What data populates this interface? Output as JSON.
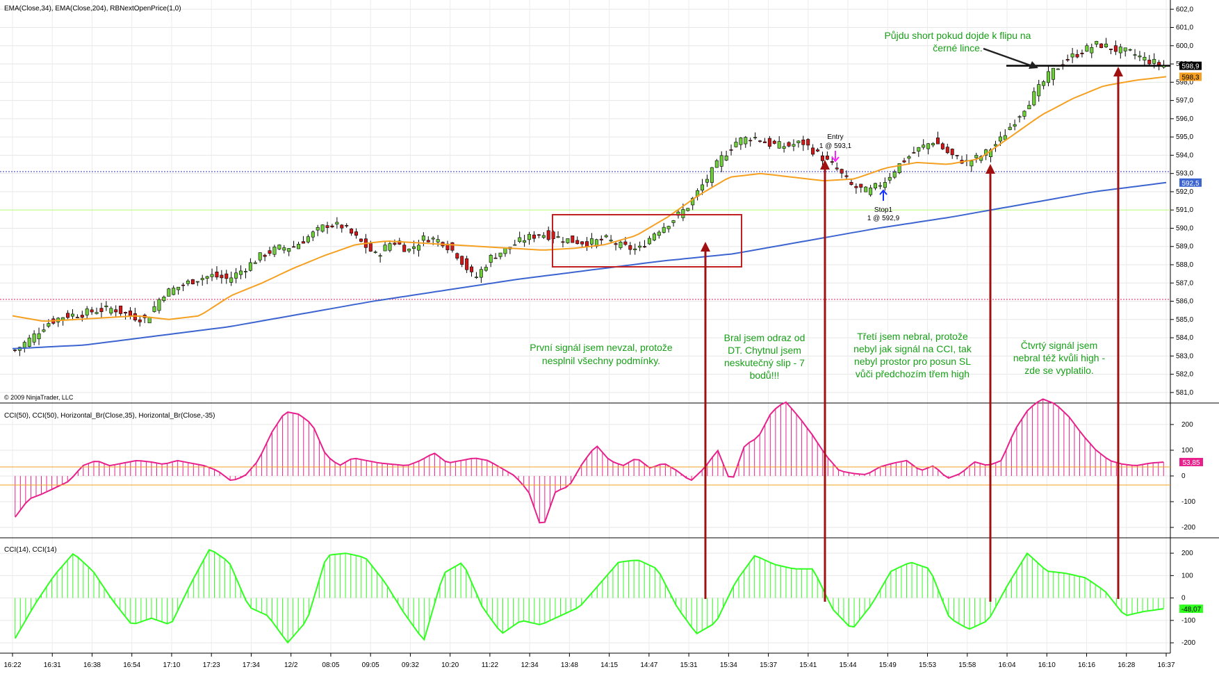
{
  "panels": {
    "price_title": "EMA(Close,34), EMA(Close,204), RBNextOpenPrice(1,0)",
    "cci50_title": "CCI(50), CCI(50), Horizontal_Br(Close,35), Horizontal_Br(Close,-35)",
    "cci14_title": "CCI(14), CCI(14)",
    "copyright": "© 2009 NinjaTrader, LLC"
  },
  "colors": {
    "up_candle": "#6fcf3a",
    "down_candle": "#d01818",
    "ema34": "#f5a020",
    "ema204": "#3c64d0",
    "cci50": "#e8208c",
    "cci14": "#30ff20",
    "annotation_text": "#18a018",
    "arrow": "#a01010",
    "box": "#c02020"
  },
  "chart_data": [
    {
      "type": "candlestick",
      "panel": "price",
      "ylim": [
        580.5,
        602.2
      ],
      "y_ticks": [
        "581,0",
        "582,0",
        "583,0",
        "584,0",
        "585,0",
        "586,0",
        "587,0",
        "588,0",
        "589,0",
        "590,0",
        "591,0",
        "592,0",
        "593,0",
        "594,0",
        "595,0",
        "596,0",
        "597,0",
        "598,0",
        "599,0",
        "600,0",
        "601,0",
        "602,0"
      ],
      "x_ticks": [
        "16:22",
        "16:31",
        "16:38",
        "16:54",
        "17:10",
        "17:23",
        "17:34",
        "12/2",
        "08:05",
        "09:05",
        "09:32",
        "10:20",
        "11:22",
        "12:34",
        "13:48",
        "14:15",
        "14:47",
        "15:31",
        "15:34",
        "15:37",
        "15:41",
        "15:44",
        "15:49",
        "15:53",
        "15:58",
        "16:04",
        "16:10",
        "16:16",
        "16:28",
        "16:37"
      ],
      "close_path": [
        583.3,
        584.0,
        584.8,
        585.2,
        585.3,
        585.5,
        585.6,
        585.2,
        585.0,
        586.4,
        586.8,
        587.2,
        587.4,
        587.2,
        587.8,
        588.5,
        588.9,
        589.0,
        589.6,
        590.2,
        590.1,
        589.3,
        588.5,
        589.3,
        588.8,
        589.5,
        589.3,
        588.5,
        587.2,
        588.4,
        588.9,
        589.4,
        589.7,
        589.5,
        589.3,
        589.2,
        589.4,
        589.0,
        588.8,
        589.8,
        590.4,
        591.2,
        592.5,
        593.8,
        594.8,
        595.0,
        594.6,
        594.5,
        594.7,
        594.0,
        593.3,
        592.3,
        592.0,
        592.6,
        593.6,
        594.3,
        594.8,
        594.0,
        593.6,
        594.0,
        594.8,
        596.0,
        597.2,
        598.4,
        599.2,
        599.7,
        600.1,
        599.8,
        599.6,
        599.2,
        598.9
      ],
      "ema34": [
        585.2,
        584.9,
        585.0,
        585.1,
        585.2,
        585.0,
        585.2,
        586.3,
        587.0,
        587.8,
        588.5,
        589.1,
        589.3,
        589.2,
        589.1,
        589.0,
        588.9,
        588.8,
        588.9,
        589.1,
        589.6,
        590.6,
        591.8,
        592.8,
        593.0,
        592.8,
        592.6,
        592.7,
        593.3,
        593.6,
        593.5,
        593.8,
        595.0,
        596.2,
        597.1,
        597.8,
        598.1,
        598.3
      ],
      "ema204": [
        583.4,
        583.6,
        584.1,
        584.6,
        585.3,
        586.0,
        586.6,
        587.2,
        587.7,
        588.2,
        588.6,
        589.3,
        590.0,
        590.6,
        591.3,
        592.0,
        592.5
      ],
      "series_notes": [
        "EMA(Close,34)",
        "EMA(Close,204)"
      ],
      "horizontal_lines": [
        {
          "y": 593.1,
          "style": "dotted",
          "color": "#3030c0"
        },
        {
          "y": 591.0,
          "style": "solid",
          "color": "#c0ff80"
        },
        {
          "y": 586.1,
          "style": "dotted",
          "color": "#e02060"
        },
        {
          "y": 598.9,
          "style": "solid",
          "color": "#000000",
          "partial": true
        }
      ],
      "price_labels": [
        {
          "text": "598,9",
          "y": 598.9,
          "bg": "#000000",
          "fg": "#ffffff"
        },
        {
          "text": "598,3",
          "y": 598.3,
          "bg": "#f5a020",
          "fg": "#000000"
        },
        {
          "text": "592,5",
          "y": 592.5,
          "bg": "#3c64d0",
          "fg": "#ffffff"
        }
      ],
      "trade_marks": {
        "entry_label": "Entry",
        "entry_detail": "1 @ 593,1",
        "stop_label": "Stop1",
        "stop_detail": "1 @ 592,9"
      }
    },
    {
      "type": "histogram_line",
      "panel": "cci50",
      "ylim": [
        -235,
        270
      ],
      "y_ticks": [
        "200",
        "100",
        "0",
        "-100",
        "-200"
      ],
      "reference_lines": [
        35,
        -35
      ],
      "last_value_label": "53,85",
      "values": [
        -160,
        -90,
        -70,
        -45,
        -20,
        40,
        60,
        40,
        50,
        60,
        55,
        45,
        60,
        50,
        40,
        20,
        -20,
        0,
        60,
        170,
        250,
        240,
        200,
        80,
        40,
        70,
        60,
        50,
        45,
        40,
        60,
        90,
        50,
        60,
        70,
        60,
        30,
        0,
        -60,
        -210,
        -60,
        -40,
        50,
        120,
        60,
        40,
        70,
        30,
        50,
        20,
        -20,
        30,
        100,
        -30,
        120,
        150,
        250,
        290,
        230,
        160,
        80,
        20,
        10,
        5,
        35,
        50,
        60,
        20,
        40,
        -10,
        10,
        55,
        40,
        60,
        180,
        260,
        300,
        280,
        230,
        160,
        100,
        60,
        45,
        40,
        50,
        54
      ]
    },
    {
      "type": "histogram_line",
      "panel": "cci14",
      "ylim": [
        -240,
        250
      ],
      "y_ticks": [
        "200",
        "100",
        "0",
        "-100",
        "-200"
      ],
      "last_value_label": "-48,07",
      "values": [
        -180,
        -30,
        100,
        200,
        120,
        -10,
        -120,
        -90,
        -120,
        60,
        220,
        160,
        -40,
        -80,
        -200,
        -100,
        190,
        200,
        180,
        70,
        -70,
        -190,
        110,
        160,
        -40,
        -160,
        -100,
        -120,
        -80,
        -40,
        60,
        160,
        170,
        130,
        -40,
        -160,
        -110,
        70,
        190,
        150,
        130,
        130,
        -50,
        -140,
        -30,
        120,
        160,
        130,
        -90,
        -140,
        -100,
        60,
        200,
        120,
        110,
        90,
        30,
        -80,
        -60,
        -48
      ]
    }
  ],
  "annotations": {
    "box_note": "",
    "note1_line1": "První signál jsem nevzal, protože",
    "note1_line2": "nesplnil všechny podmínky.",
    "note2_line1": "Bral jsem odraz od",
    "note2_line2": "DT. Chytnul jsem",
    "note2_line3": "neskutečný slip - 7",
    "note2_line4": "bodů!!!",
    "note3_line1": "Třetí jsem nebral, protože",
    "note3_line2": "nebyl jak signál na CCI, tak",
    "note3_line3": "nebyl prostor pro posun SL",
    "note3_line4": "vůči předchozím třem high",
    "note4_line1": "Čtvrtý signál jsem",
    "note4_line2": "nebral též kvůli high -",
    "note4_line3": "zde se vyplatilo.",
    "note5_line1": "Půjdu short pokud dojde k flipu na",
    "note5_line2": "černé lince."
  }
}
